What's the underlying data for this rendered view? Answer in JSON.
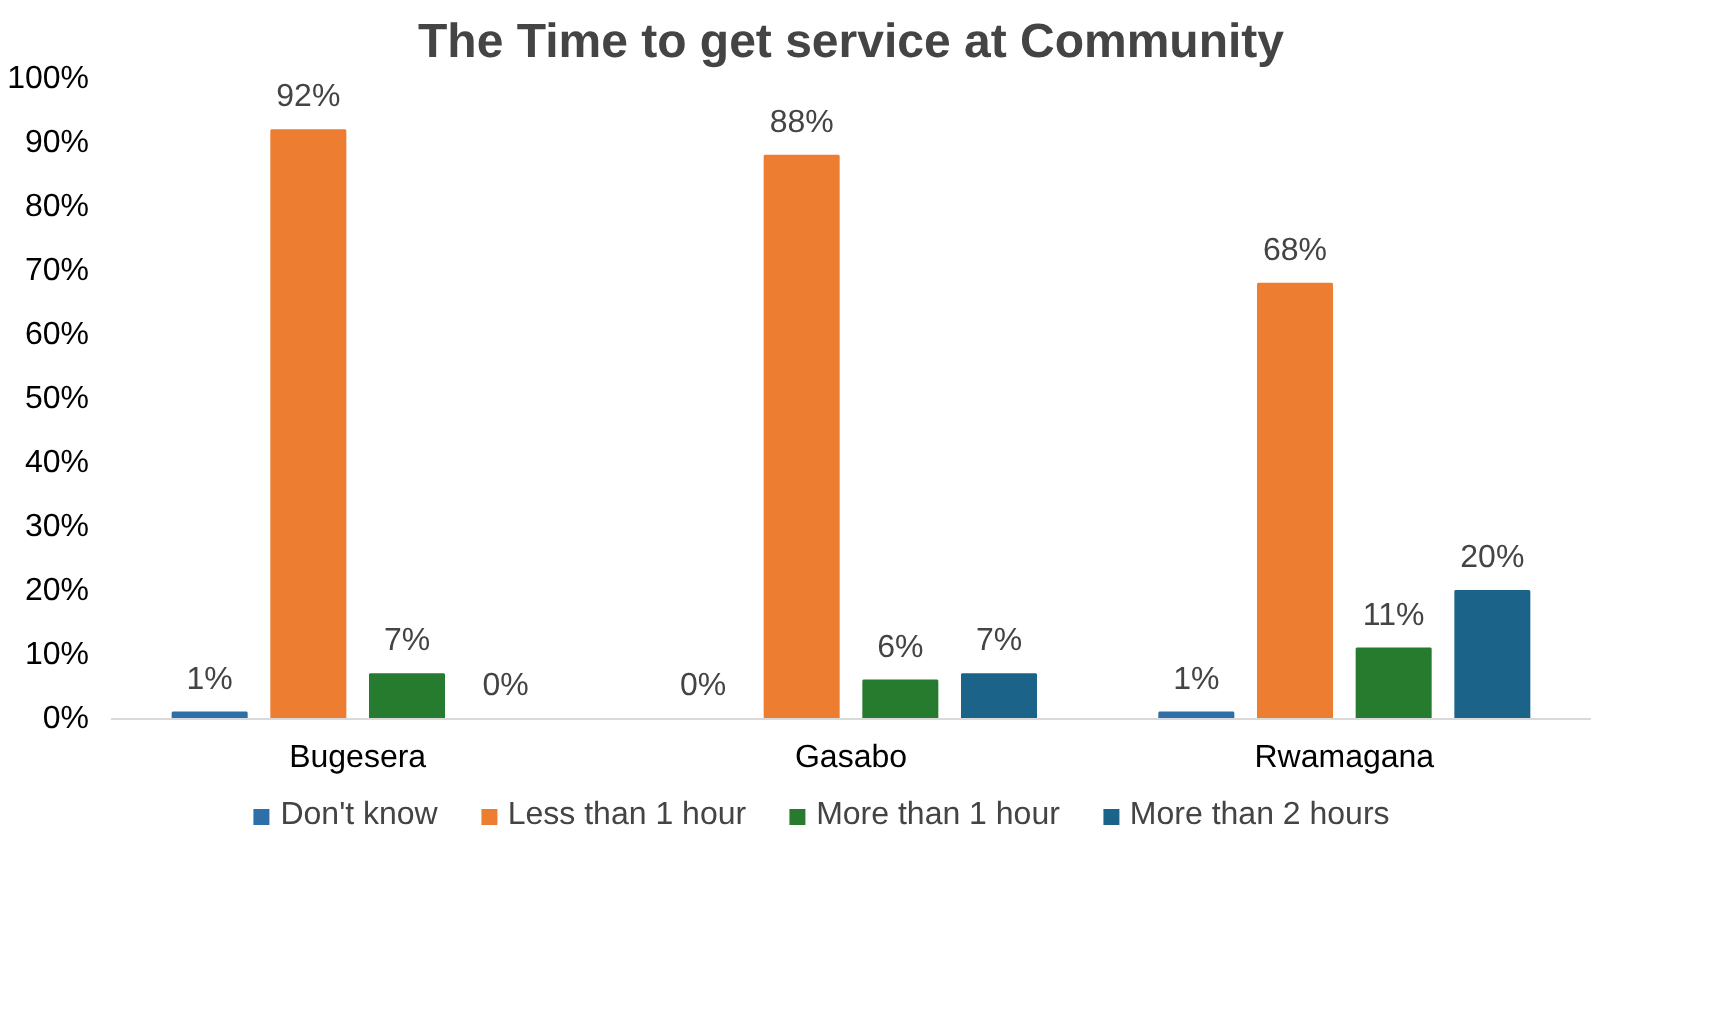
{
  "chart_data": {
    "type": "bar",
    "title": "The Time to get service at Community",
    "categories": [
      "Bugesera",
      "Gasabo",
      "Rwamagana"
    ],
    "series": [
      {
        "name": "Don't know",
        "color": "#2e6fa7",
        "values": [
          1,
          0,
          1
        ],
        "value_labels": [
          "1%",
          "0%",
          "1%"
        ]
      },
      {
        "name": "Less than 1 hour",
        "color": "#ed7d31",
        "values": [
          92,
          88,
          68
        ],
        "value_labels": [
          "92%",
          "88%",
          "68%"
        ]
      },
      {
        "name": "More than 1 hour",
        "color": "#267b2f",
        "values": [
          7,
          6,
          11
        ],
        "value_labels": [
          "7%",
          "6%",
          "11%"
        ]
      },
      {
        "name": "More than 2 hours",
        "color": "#1b6389",
        "values": [
          0,
          7,
          20
        ],
        "value_labels": [
          "0%",
          "7%",
          "20%"
        ]
      }
    ],
    "ylim": [
      0,
      100
    ],
    "yticks": [
      {
        "value": 0,
        "label": "0%"
      },
      {
        "value": 10,
        "label": "10%"
      },
      {
        "value": 20,
        "label": "20%"
      },
      {
        "value": 30,
        "label": "30%"
      },
      {
        "value": 40,
        "label": "40%"
      },
      {
        "value": 50,
        "label": "50%"
      },
      {
        "value": 60,
        "label": "60%"
      },
      {
        "value": 70,
        "label": "70%"
      },
      {
        "value": 80,
        "label": "80%"
      },
      {
        "value": 90,
        "label": "90%"
      },
      {
        "value": 100,
        "label": "100%"
      }
    ],
    "grid": false,
    "legend": "bottom"
  }
}
